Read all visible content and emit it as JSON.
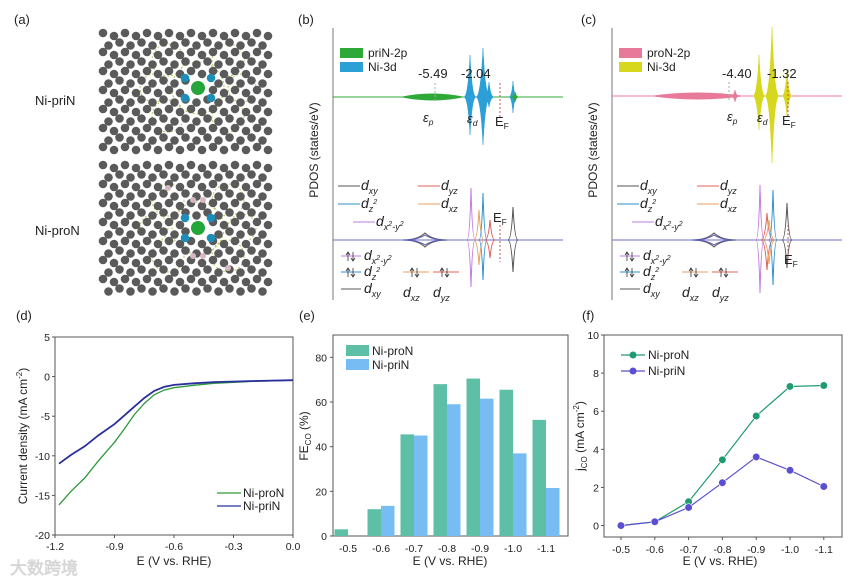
{
  "panel_labels": {
    "a": "(a)",
    "b": "(b)",
    "c": "(c)",
    "d": "(d)",
    "e": "(e)",
    "f": "(f)"
  },
  "structures": {
    "top": "Ni-priN",
    "bottom": "Ni-proN"
  },
  "pdos": {
    "ylabel": "PDOS (states/eV)",
    "b": {
      "legend": [
        "priN-2p",
        "Ni-3d"
      ],
      "colors": [
        "#2ea836",
        "#2b9fd6"
      ],
      "values": [
        "-5.49",
        "-2.04"
      ],
      "eps_p": "ε",
      "eps_p_sub": "p",
      "eps_d": "ε",
      "eps_d_sub": "d",
      "ef": "E",
      "ef_sub": "F"
    },
    "c": {
      "legend": [
        "proN-2p",
        "Ni-3d"
      ],
      "colors": [
        "#e8799a",
        "#d7d81e"
      ],
      "values": [
        "-4.40",
        "-1.32"
      ],
      "eps_p": "ε",
      "eps_p_sub": "p",
      "eps_d": "ε",
      "eps_d_sub": "d",
      "ef": "E",
      "ef_sub": "F"
    },
    "orbitals": {
      "d": "d",
      "xy": "xy",
      "yz": "yz",
      "z2": "z",
      "z2_sup": "2",
      "xz": "xz",
      "x2y2_a": "x",
      "x2y2_sup1": "2",
      "x2y2_b": "-y",
      "x2y2_sup2": "2",
      "colors": {
        "xy": "#555555",
        "yz": "#e0605a",
        "z2": "#2f8fcf",
        "xz": "#e8a060",
        "x2y2": "#c07be0"
      }
    }
  },
  "watermark": "大数跨境",
  "chart_data": [
    {
      "panel": "d",
      "type": "line",
      "xlabel": "E (V vs. RHE)",
      "ylabel": "Current density (mA cm",
      "ylabel_sup": "-2",
      "ylabel_end": ")",
      "xlim": [
        -1.2,
        0.0
      ],
      "ylim": [
        -20,
        5
      ],
      "xticks": [
        "-1.2",
        "-0.9",
        "-0.6",
        "-0.3",
        "0.0"
      ],
      "xtick_values": [
        -1.2,
        -0.9,
        -0.6,
        -0.3,
        0.0
      ],
      "yticks": [
        "5",
        "0",
        "-5",
        "-10",
        "-15",
        "-20"
      ],
      "ytick_values": [
        5,
        0,
        -5,
        -10,
        -15,
        -20
      ],
      "legend_position": "bottom-right",
      "series": [
        {
          "name": "Ni-proN",
          "color": "#2e9a3a",
          "x": [
            -1.18,
            -1.12,
            -1.05,
            -0.98,
            -0.9,
            -0.85,
            -0.8,
            -0.75,
            -0.7,
            -0.65,
            -0.6,
            -0.5,
            -0.4,
            -0.2,
            0.0
          ],
          "y": [
            -16.2,
            -14.5,
            -12.8,
            -10.6,
            -8.3,
            -6.6,
            -4.8,
            -3.4,
            -2.3,
            -1.7,
            -1.4,
            -1.1,
            -0.85,
            -0.6,
            -0.45
          ]
        },
        {
          "name": "Ni-priN",
          "color": "#2a2f9e",
          "x": [
            -1.18,
            -1.12,
            -1.05,
            -0.98,
            -0.9,
            -0.85,
            -0.8,
            -0.75,
            -0.7,
            -0.65,
            -0.6,
            -0.5,
            -0.4,
            -0.2,
            0.0
          ],
          "y": [
            -11.0,
            -9.9,
            -8.8,
            -7.4,
            -6.0,
            -4.9,
            -3.8,
            -2.7,
            -1.8,
            -1.3,
            -1.05,
            -0.85,
            -0.7,
            -0.55,
            -0.45
          ]
        }
      ]
    },
    {
      "panel": "e",
      "type": "bar",
      "xlabel": "E (V vs. RHE)",
      "ylabel": "FE",
      "ylabel_sub": "CO",
      "ylabel_end": " (%)",
      "ylim": [
        0,
        90
      ],
      "categories": [
        "-0.5",
        "-0.6",
        "-0.7",
        "-0.8",
        "-0.9",
        "-1.0",
        "-1.1"
      ],
      "yticks": [
        "0",
        "20",
        "40",
        "60",
        "80"
      ],
      "ytick_values": [
        0,
        20,
        40,
        60,
        80
      ],
      "legend_position": "top-left",
      "series": [
        {
          "name": "Ni-proN",
          "color": "#5dbfa6",
          "values": [
            3,
            12,
            45.5,
            68,
            70.5,
            65.5,
            52
          ]
        },
        {
          "name": "Ni-priN",
          "color": "#77bdf3",
          "values": [
            0,
            13.5,
            45,
            59,
            61.5,
            37,
            21.5
          ]
        }
      ]
    },
    {
      "panel": "f",
      "type": "line",
      "xlabel": "E (V vs. RHE)",
      "ylabel": "j",
      "ylabel_sub": "CO",
      "ylabel_mid": " (mA cm",
      "ylabel_sup": "-2",
      "ylabel_end": ")",
      "ylim": [
        -0.6,
        10
      ],
      "categories": [
        "-0.5",
        "-0.6",
        "-0.7",
        "-0.8",
        "-0.9",
        "-1.0",
        "-1.1"
      ],
      "yticks": [
        "0",
        "2",
        "4",
        "6",
        "8",
        "10"
      ],
      "ytick_values": [
        0,
        2,
        4,
        6,
        8,
        10
      ],
      "legend_position": "top-left",
      "series": [
        {
          "name": "Ni-proN",
          "color": "#1f9a72",
          "values": [
            0.0,
            0.2,
            1.25,
            3.45,
            5.75,
            7.3,
            7.35
          ]
        },
        {
          "name": "Ni-priN",
          "color": "#5a4fd0",
          "values": [
            0.0,
            0.2,
            0.95,
            2.25,
            3.6,
            2.9,
            2.05
          ]
        }
      ]
    }
  ]
}
